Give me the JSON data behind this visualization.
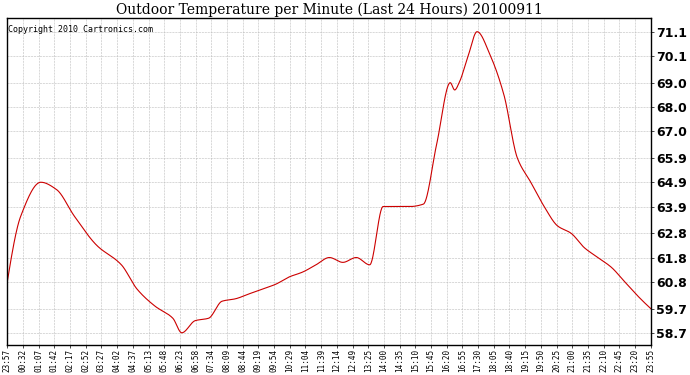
{
  "title": "Outdoor Temperature per Minute (Last 24 Hours) 20100911",
  "copyright_text": "Copyright 2010 Cartronics.com",
  "line_color": "#cc0000",
  "background_color": "#ffffff",
  "grid_color": "#bbbbbb",
  "ylim": [
    58.2,
    71.65
  ],
  "yticks": [
    58.7,
    59.7,
    60.8,
    61.8,
    62.8,
    63.9,
    64.9,
    65.9,
    67.0,
    68.0,
    69.0,
    70.1,
    71.1
  ],
  "xtick_labels": [
    "23:57",
    "00:32",
    "01:07",
    "01:42",
    "02:17",
    "02:52",
    "03:27",
    "04:02",
    "04:37",
    "05:13",
    "05:48",
    "06:23",
    "06:58",
    "07:34",
    "08:09",
    "08:44",
    "09:19",
    "09:54",
    "10:29",
    "11:04",
    "11:39",
    "12:14",
    "12:49",
    "13:25",
    "14:00",
    "14:35",
    "15:10",
    "15:45",
    "16:20",
    "16:55",
    "17:30",
    "18:05",
    "18:40",
    "19:15",
    "19:50",
    "20:25",
    "21:00",
    "21:35",
    "22:10",
    "22:45",
    "23:20",
    "23:55"
  ],
  "ctrl_x": [
    0,
    30,
    75,
    110,
    150,
    200,
    255,
    290,
    330,
    370,
    390,
    420,
    450,
    480,
    510,
    540,
    570,
    600,
    630,
    660,
    690,
    720,
    750,
    780,
    810,
    840,
    870,
    900,
    930,
    960,
    990,
    1000,
    1010,
    1030,
    1050,
    1080,
    1110,
    1140,
    1170,
    1200,
    1230,
    1260,
    1290,
    1320,
    1350,
    1380,
    1410,
    1438
  ],
  "ctrl_y": [
    60.8,
    63.5,
    64.9,
    64.6,
    63.5,
    62.3,
    61.5,
    60.5,
    59.8,
    59.3,
    58.7,
    59.2,
    59.3,
    60.0,
    60.1,
    60.3,
    60.5,
    60.7,
    61.0,
    61.2,
    61.5,
    61.8,
    61.6,
    61.8,
    61.5,
    63.9,
    63.9,
    63.9,
    64.0,
    66.5,
    69.0,
    68.7,
    69.0,
    70.1,
    71.1,
    70.1,
    68.5,
    65.9,
    64.9,
    63.9,
    63.1,
    62.8,
    62.2,
    61.8,
    61.4,
    60.8,
    60.2,
    59.7
  ]
}
